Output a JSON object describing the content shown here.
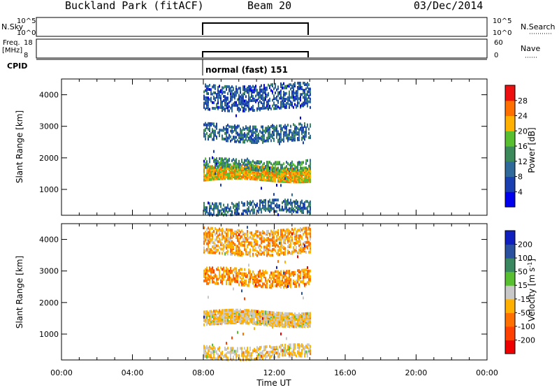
{
  "header": {
    "site": "Buckland Park (fitACF)",
    "beam": "Beam 20",
    "date": "03/Dec/2014"
  },
  "strips": {
    "nsky": {
      "label": "N.Sky",
      "left_ticks": [
        "10^5",
        "10^0"
      ],
      "right_ticks": [
        "10^5",
        "10^0"
      ],
      "right_label": "N.Search"
    },
    "freq": {
      "label_line1": "Freq.",
      "label_line2": "[MHz]",
      "left_ticks": [
        "18",
        "8"
      ],
      "right_ticks": [
        "60",
        "0"
      ],
      "right_label": "Nave"
    },
    "cpid": {
      "label": "CPID",
      "mode": "normal (fast) 151"
    }
  },
  "colors": {
    "power": [
      "#0000ee",
      "#1a3fb0",
      "#2f6a9a",
      "#3c8a5a",
      "#58c030",
      "#ffb000",
      "#ff7000",
      "#ee1010"
    ],
    "velocity": [
      "#1020c0",
      "#2a50a0",
      "#3a8860",
      "#58c030",
      "#c8c8c8",
      "#ffb000",
      "#ff7000",
      "#ff4000",
      "#ee0000"
    ]
  },
  "chart_data": [
    {
      "type": "heatmap",
      "name": "power",
      "xlabel": "",
      "ylabel": "Slant Range [km]",
      "xlim": [
        "00:00",
        "00:00"
      ],
      "ylim": [
        180,
        4500
      ],
      "yticks": [
        "4000",
        "3000",
        "2000",
        "1000"
      ],
      "data_time_range": [
        "08:00",
        "14:00"
      ],
      "colorbar": {
        "label": "Power [dB]",
        "ticks": [
          "28",
          "24",
          "20",
          "16",
          "12",
          "8",
          "4"
        ],
        "range": [
          0,
          32
        ]
      },
      "bands": [
        {
          "range_km": [
            1250,
            1700
          ],
          "value_db": 20
        },
        {
          "range_km": [
            1600,
            1900
          ],
          "value_db": 12
        },
        {
          "range_km": [
            2500,
            3000
          ],
          "value_db": 8
        },
        {
          "range_km": [
            3500,
            4300
          ],
          "value_db": 6
        },
        {
          "range_km": [
            200,
            600
          ],
          "value_db": 8
        }
      ]
    },
    {
      "type": "heatmap",
      "name": "velocity",
      "xlabel": "Time UT",
      "ylabel": "Slant Range [km]",
      "xlim": [
        "00:00",
        "00:00"
      ],
      "ylim": [
        180,
        4500
      ],
      "xticks": [
        "00:00",
        "04:00",
        "08:00",
        "12:00",
        "16:00",
        "20:00",
        "00:00"
      ],
      "yticks": [
        "4000",
        "3000",
        "2000",
        "1000"
      ],
      "data_time_range": [
        "08:00",
        "14:00"
      ],
      "colorbar": {
        "label": "Velocity [m s",
        "label_sup": "-1",
        "label_end": "]",
        "ticks": [
          "200",
          "100",
          "50",
          "15",
          "-15",
          "-50",
          "-100",
          "-200"
        ],
        "range": [
          -250,
          250
        ]
      },
      "bands": [
        {
          "range_km": [
            1250,
            1700
          ],
          "value_ms": 0
        },
        {
          "range_km": [
            2500,
            3000
          ],
          "value_ms": -60
        },
        {
          "range_km": [
            3500,
            4300
          ],
          "value_ms": -40
        },
        {
          "range_km": [
            200,
            600
          ],
          "value_ms": 0
        }
      ]
    }
  ]
}
